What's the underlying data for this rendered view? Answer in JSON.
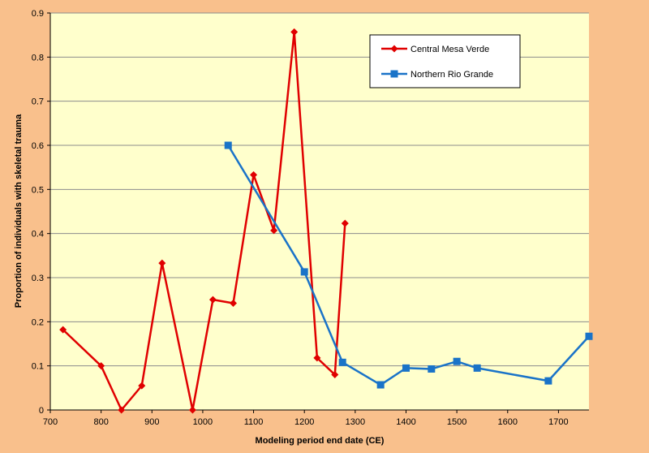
{
  "chart_data": {
    "type": "line",
    "title": "",
    "xlabel": "Modeling period end date (CE)",
    "ylabel": "Proportion of individuals with skeletal trauma",
    "xlim": [
      700,
      1760
    ],
    "ylim": [
      0,
      0.9
    ],
    "xticks": [
      700,
      800,
      900,
      1000,
      1100,
      1200,
      1300,
      1400,
      1500,
      1600,
      1700
    ],
    "yticks": [
      0,
      0.1,
      0.2,
      0.3,
      0.4,
      0.5,
      0.6,
      0.7,
      0.8,
      0.9
    ],
    "grid": "horizontal",
    "legend_position": "top-right",
    "series": [
      {
        "name": "Central Mesa Verde",
        "color": "#e00000",
        "marker": "diamond",
        "x": [
          725,
          800,
          840,
          880,
          920,
          980,
          1020,
          1060,
          1100,
          1140,
          1180,
          1225,
          1260,
          1280
        ],
        "y": [
          0.182,
          0.1,
          0.0,
          0.055,
          0.333,
          0.0,
          0.25,
          0.242,
          0.533,
          0.407,
          0.857,
          0.118,
          0.08,
          0.423
        ]
      },
      {
        "name": "Northern Rio Grande",
        "color": "#1a73c8",
        "marker": "square",
        "x": [
          1050,
          1200,
          1275,
          1350,
          1400,
          1450,
          1500,
          1540,
          1680,
          1760
        ],
        "y": [
          0.6,
          0.313,
          0.108,
          0.057,
          0.095,
          0.093,
          0.11,
          0.095,
          0.066,
          0.167
        ]
      }
    ]
  }
}
